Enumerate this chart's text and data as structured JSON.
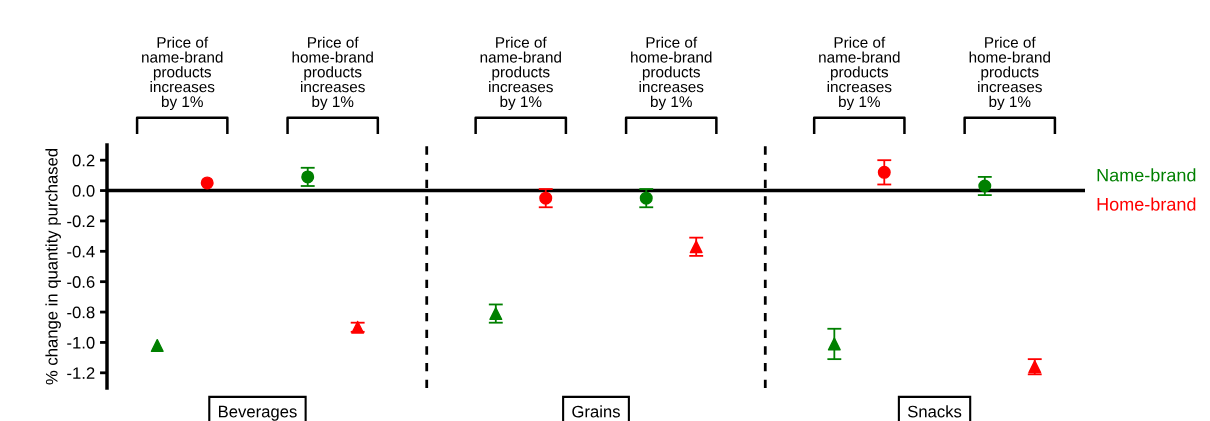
{
  "chart_data": {
    "type": "scatter",
    "categories": [
      "Price of\nname-brand\nproducts\nincreases\nby 1%",
      "Price of\nhome-brand\nproducts\nincreases\nby 1%",
      "Price of\nname-brand\nproducts\nincreases\nby 1%",
      "Price of\nhome-brand\nproducts\nincreases\nby 1%",
      "Price of\nname-brand\nproducts\nincreases\nby 1%",
      "Price of\nhome-brand\nproducts\nincreases\nby 1%"
    ],
    "series": [
      {
        "name": "Name-brand",
        "color": "#008000",
        "marker": "triangle",
        "values": [
          -1.02,
          null,
          -0.81,
          null,
          -1.01,
          null
        ],
        "errors": [
          null,
          null,
          0.06,
          null,
          0.1,
          null
        ]
      },
      {
        "color": "#008000",
        "marker": "circle",
        "values": [
          null,
          0.09,
          null,
          -0.05,
          null,
          0.03
        ],
        "errors": [
          null,
          0.06,
          null,
          0.06,
          null,
          0.06
        ]
      },
      {
        "name": "Home-brand",
        "color": "#ff0000",
        "marker": "circle",
        "values": [
          0.05,
          null,
          -0.05,
          null,
          0.12,
          null
        ],
        "errors": [
          null,
          null,
          0.06,
          null,
          0.08,
          null
        ]
      },
      {
        "color": "#ff0000",
        "marker": "triangle",
        "values": [
          null,
          -0.9,
          null,
          -0.37,
          null,
          -1.16
        ],
        "errors": [
          null,
          0.03,
          null,
          0.06,
          null,
          0.05
        ]
      }
    ],
    "ylabel": "% change in quantity purchased",
    "ylim": [
      -1.3,
      0.3
    ],
    "yticks": [
      {
        "value": 0.2,
        "label": "0.2"
      },
      {
        "value": 0.0,
        "label": "0.0"
      },
      {
        "value": -0.2,
        "label": "-0.2"
      },
      {
        "value": -0.4,
        "label": "-0.4"
      },
      {
        "value": -0.6,
        "label": "-0.6"
      },
      {
        "value": -0.8,
        "label": "-0.8"
      },
      {
        "value": -1.0,
        "label": "-1.0"
      },
      {
        "value": -1.2,
        "label": "-1.2"
      }
    ],
    "ref_lines": [
      {
        "axis": "y",
        "value": 0,
        "color": "#000000",
        "line_style": "solid"
      }
    ],
    "annotations": [
      "Beverages",
      "Grains",
      "Snacks"
    ],
    "grid": false,
    "legend": "right"
  }
}
